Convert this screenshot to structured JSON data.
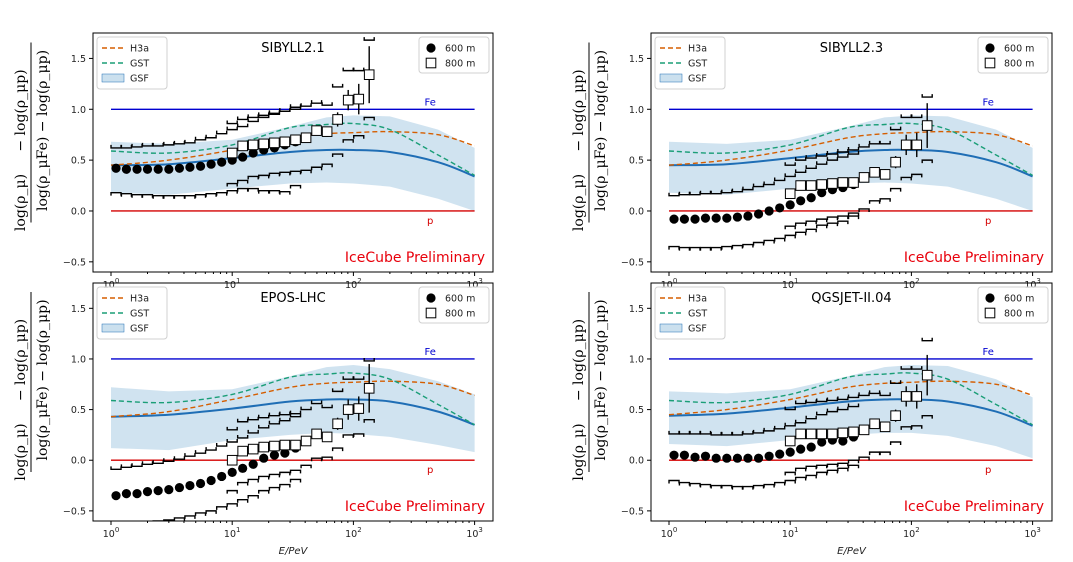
{
  "figure": {
    "xlabel": "E/PeV",
    "xtick_labels": [
      "10^0",
      "10^1",
      "10^2",
      "10^3"
    ],
    "ytick_labels": [
      "−0.5",
      "0.0",
      "0.5",
      "1.0",
      "1.5"
    ],
    "ylabel_numerator_left": "log(ρ_μ)",
    "ylabel_numerator_right": "− log(ρ_μp)",
    "ylabel_denominator": "log(ρ_μFe) − log(ρ_μp)"
  },
  "colors": {
    "h3a": "#d55e00",
    "gst": "#1a9e77",
    "gsf_line": "#1f6eb5",
    "gsf_band": "#a9cce3",
    "fe": "#0000d0",
    "p": "#d40000",
    "prelim": "#e8000b"
  },
  "chart_data": [
    {
      "type": "scatter",
      "title": "SIBYLL2.1",
      "annotation": "IceCube Preliminary",
      "xscale": "log",
      "xlabel": "E/PeV",
      "xlim": [
        0.8,
        1200
      ],
      "ylim": [
        -0.6,
        1.75
      ],
      "grid": false,
      "legend": {
        "models": [
          "H3a",
          "GST",
          "GSF"
        ],
        "markers": [
          "600 m",
          "800 m"
        ],
        "placement": "top-left and top-right"
      },
      "reference_lines": [
        {
          "name": "Fe",
          "y": 1.0
        },
        {
          "name": "p",
          "y": 0.0
        }
      ],
      "curves": {
        "x": [
          1.0,
          3.0,
          10.0,
          30.0,
          60.0,
          100.0,
          200.0,
          500.0,
          1000.0
        ],
        "H3a": [
          0.45,
          0.5,
          0.6,
          0.72,
          0.76,
          0.77,
          0.78,
          0.75,
          0.64
        ],
        "GST": [
          0.59,
          0.57,
          0.65,
          0.82,
          0.85,
          0.86,
          0.8,
          0.55,
          0.35
        ],
        "GSF": [
          0.45,
          0.46,
          0.52,
          0.58,
          0.6,
          0.6,
          0.58,
          0.48,
          0.34
        ],
        "GSF_low": [
          0.18,
          0.16,
          0.22,
          0.27,
          0.28,
          0.27,
          0.24,
          0.12,
          0.0
        ],
        "GSF_high": [
          0.68,
          0.66,
          0.7,
          0.83,
          0.92,
          0.94,
          0.93,
          0.8,
          0.62
        ]
      },
      "series": [
        {
          "name": "600 m",
          "marker": "filled-circle",
          "x": [
            1.1,
            1.34,
            1.64,
            2.0,
            2.45,
            3.0,
            3.67,
            4.48,
            5.48,
            6.7,
            8.19,
            10.0,
            12.2,
            14.9,
            18.2,
            22.3,
            27.2,
            33.3
          ],
          "y": [
            0.42,
            0.41,
            0.41,
            0.41,
            0.41,
            0.41,
            0.42,
            0.43,
            0.44,
            0.46,
            0.48,
            0.5,
            0.53,
            0.57,
            0.6,
            0.62,
            0.65,
            0.68
          ],
          "sys_low": [
            0.18,
            0.17,
            0.16,
            0.16,
            0.15,
            0.15,
            0.15,
            0.15,
            0.16,
            0.17,
            0.18,
            0.2,
            0.22,
            0.22,
            0.2,
            0.2,
            0.19,
            0.25
          ],
          "sys_high": [
            0.62,
            0.62,
            0.63,
            0.64,
            0.64,
            0.65,
            0.66,
            0.67,
            0.7,
            0.72,
            0.76,
            0.8,
            0.83,
            0.88,
            0.92,
            0.95,
            0.98,
            1.02
          ]
        },
        {
          "name": "800 m",
          "marker": "open-square",
          "x": [
            10.0,
            12.2,
            14.9,
            18.2,
            22.3,
            27.2,
            33.3,
            40.7,
            49.7,
            60.7,
            74.1,
            90.6,
            110.7,
            135.0
          ],
          "y": [
            0.57,
            0.64,
            0.65,
            0.66,
            0.67,
            0.68,
            0.7,
            0.72,
            0.79,
            0.78,
            0.9,
            1.09,
            1.1,
            1.34
          ],
          "err": [
            0.0,
            0.0,
            0.0,
            0.0,
            0.0,
            0.0,
            0.0,
            0.03,
            0.04,
            0.05,
            0.07,
            0.1,
            0.15,
            0.28
          ],
          "sys_low": [
            0.27,
            0.3,
            0.34,
            0.35,
            0.37,
            0.38,
            0.39,
            0.4,
            0.43,
            0.46,
            0.56,
            0.7,
            0.74,
            0.92
          ],
          "sys_high": [
            0.86,
            0.9,
            0.92,
            0.94,
            0.96,
            0.98,
            1.0,
            1.03,
            1.06,
            1.04,
            1.22,
            1.38,
            1.38,
            1.68
          ]
        }
      ]
    },
    {
      "type": "scatter",
      "title": "SIBYLL2.3",
      "annotation": "IceCube Preliminary",
      "xscale": "log",
      "xlabel": "E/PeV",
      "xlim": [
        0.8,
        1200
      ],
      "ylim": [
        -0.6,
        1.75
      ],
      "grid": false,
      "legend": {
        "models": [
          "H3a",
          "GST",
          "GSF"
        ],
        "markers": [
          "600 m",
          "800 m"
        ],
        "placement": "top-left and top-right"
      },
      "reference_lines": [
        {
          "name": "Fe",
          "y": 1.0
        },
        {
          "name": "p",
          "y": 0.0
        }
      ],
      "curves": {
        "x": [
          1.0,
          3.0,
          10.0,
          30.0,
          60.0,
          100.0,
          200.0,
          500.0,
          1000.0
        ],
        "H3a": [
          0.45,
          0.5,
          0.6,
          0.72,
          0.76,
          0.77,
          0.78,
          0.75,
          0.64
        ],
        "GST": [
          0.59,
          0.57,
          0.65,
          0.82,
          0.85,
          0.86,
          0.8,
          0.55,
          0.35
        ],
        "GSF": [
          0.45,
          0.46,
          0.52,
          0.58,
          0.6,
          0.6,
          0.58,
          0.48,
          0.34
        ],
        "GSF_low": [
          0.18,
          0.16,
          0.22,
          0.27,
          0.28,
          0.27,
          0.24,
          0.12,
          0.0
        ],
        "GSF_high": [
          0.68,
          0.66,
          0.7,
          0.83,
          0.92,
          0.94,
          0.93,
          0.8,
          0.62
        ]
      },
      "series": [
        {
          "name": "600 m",
          "marker": "filled-circle",
          "x": [
            1.1,
            1.34,
            1.64,
            2.0,
            2.45,
            3.0,
            3.67,
            4.48,
            5.48,
            6.7,
            8.19,
            10.0,
            12.2,
            14.9,
            18.2,
            22.3,
            27.2,
            33.3
          ],
          "y": [
            -0.08,
            -0.08,
            -0.08,
            -0.07,
            -0.07,
            -0.07,
            -0.06,
            -0.05,
            -0.03,
            0.0,
            0.03,
            0.06,
            0.1,
            0.13,
            0.18,
            0.21,
            0.23,
            0.26
          ],
          "sys_low": [
            -0.35,
            -0.36,
            -0.36,
            -0.36,
            -0.36,
            -0.35,
            -0.34,
            -0.33,
            -0.31,
            -0.29,
            -0.27,
            -0.24,
            -0.21,
            -0.18,
            -0.14,
            -0.12,
            -0.1,
            -0.05
          ],
          "sys_high": [
            0.15,
            0.16,
            0.16,
            0.17,
            0.17,
            0.18,
            0.19,
            0.21,
            0.24,
            0.26,
            0.3,
            0.34,
            0.38,
            0.42,
            0.46,
            0.5,
            0.53,
            0.56
          ]
        },
        {
          "name": "800 m",
          "marker": "open-square",
          "x": [
            10.0,
            12.2,
            14.9,
            18.2,
            22.3,
            27.2,
            33.3,
            40.7,
            49.7,
            60.7,
            74.1,
            90.6,
            110.7,
            135.0
          ],
          "y": [
            0.17,
            0.25,
            0.25,
            0.26,
            0.27,
            0.28,
            0.28,
            0.33,
            0.38,
            0.36,
            0.48,
            0.65,
            0.65,
            0.84
          ],
          "err": [
            0.0,
            0.0,
            0.0,
            0.0,
            0.0,
            0.0,
            0.0,
            0.03,
            0.04,
            0.05,
            0.06,
            0.1,
            0.12,
            0.22
          ],
          "sys_low": [
            -0.15,
            -0.12,
            -0.1,
            -0.08,
            -0.06,
            -0.05,
            -0.02,
            0.02,
            0.1,
            0.12,
            0.22,
            0.33,
            0.36,
            0.5
          ],
          "sys_high": [
            0.45,
            0.5,
            0.52,
            0.54,
            0.56,
            0.58,
            0.6,
            0.63,
            0.66,
            0.66,
            0.8,
            0.92,
            0.92,
            1.12
          ]
        }
      ]
    },
    {
      "type": "scatter",
      "title": "EPOS-LHC",
      "annotation": "IceCube Preliminary",
      "xscale": "log",
      "xlabel": "E/PeV",
      "xlim": [
        0.8,
        1200
      ],
      "ylim": [
        -0.6,
        1.75
      ],
      "grid": false,
      "legend": {
        "models": [
          "H3a",
          "GST",
          "GSF"
        ],
        "markers": [
          "600 m",
          "800 m"
        ],
        "placement": "top-left and top-right"
      },
      "reference_lines": [
        {
          "name": "Fe",
          "y": 1.0
        },
        {
          "name": "p",
          "y": 0.0
        }
      ],
      "curves": {
        "x": [
          1.0,
          3.0,
          10.0,
          30.0,
          60.0,
          100.0,
          200.0,
          500.0,
          1000.0
        ],
        "H3a": [
          0.43,
          0.48,
          0.6,
          0.72,
          0.76,
          0.77,
          0.78,
          0.75,
          0.64
        ],
        "GST": [
          0.59,
          0.57,
          0.65,
          0.82,
          0.85,
          0.86,
          0.8,
          0.55,
          0.35
        ],
        "GSF": [
          0.43,
          0.45,
          0.51,
          0.58,
          0.6,
          0.6,
          0.58,
          0.48,
          0.35
        ],
        "GSF_low": [
          0.12,
          0.1,
          0.2,
          0.25,
          0.27,
          0.26,
          0.23,
          0.15,
          0.08
        ],
        "GSF_high": [
          0.72,
          0.68,
          0.7,
          0.83,
          0.92,
          0.94,
          0.9,
          0.78,
          0.65
        ]
      },
      "series": [
        {
          "name": "600 m",
          "marker": "filled-circle",
          "x": [
            1.1,
            1.34,
            1.64,
            2.0,
            2.45,
            3.0,
            3.67,
            4.48,
            5.48,
            6.7,
            8.19,
            10.0,
            12.2,
            14.9,
            18.2,
            22.3,
            27.2,
            33.3
          ],
          "y": [
            -0.35,
            -0.33,
            -0.33,
            -0.31,
            -0.3,
            -0.29,
            -0.27,
            -0.25,
            -0.23,
            -0.2,
            -0.16,
            -0.12,
            -0.08,
            -0.04,
            0.02,
            0.05,
            0.07,
            0.12
          ],
          "sys_low": [
            -0.62,
            -0.62,
            -0.62,
            -0.61,
            -0.6,
            -0.59,
            -0.57,
            -0.55,
            -0.52,
            -0.5,
            -0.46,
            -0.43,
            -0.39,
            -0.35,
            -0.3,
            -0.27,
            -0.24,
            -0.19
          ],
          "sys_high": [
            -0.09,
            -0.07,
            -0.06,
            -0.04,
            -0.03,
            -0.01,
            0.01,
            0.04,
            0.07,
            0.1,
            0.14,
            0.18,
            0.22,
            0.27,
            0.32,
            0.36,
            0.39,
            0.43
          ]
        },
        {
          "name": "800 m",
          "marker": "open-square",
          "x": [
            10.0,
            12.2,
            14.9,
            18.2,
            22.3,
            27.2,
            33.3,
            40.7,
            49.7,
            60.7,
            74.1,
            90.6,
            110.7,
            135.0
          ],
          "y": [
            0.0,
            0.09,
            0.11,
            0.13,
            0.14,
            0.15,
            0.15,
            0.19,
            0.26,
            0.23,
            0.36,
            0.5,
            0.51,
            0.71
          ],
          "err": [
            0.0,
            0.0,
            0.0,
            0.0,
            0.0,
            0.0,
            0.0,
            0.03,
            0.04,
            0.05,
            0.06,
            0.1,
            0.12,
            0.24
          ],
          "sys_low": [
            -0.3,
            -0.22,
            -0.19,
            -0.16,
            -0.14,
            -0.12,
            -0.1,
            -0.05,
            0.02,
            0.03,
            0.12,
            0.25,
            0.26,
            0.4
          ],
          "sys_high": [
            0.3,
            0.38,
            0.4,
            0.42,
            0.44,
            0.45,
            0.46,
            0.5,
            0.56,
            0.52,
            0.68,
            0.8,
            0.8,
            0.98
          ]
        }
      ]
    },
    {
      "type": "scatter",
      "title": "QGSJET-II.04",
      "annotation": "IceCube Preliminary",
      "xscale": "log",
      "xlabel": "E/PeV",
      "xlim": [
        0.8,
        1200
      ],
      "ylim": [
        -0.6,
        1.75
      ],
      "grid": false,
      "legend": {
        "models": [
          "H3a",
          "GST",
          "GSF"
        ],
        "markers": [
          "600 m",
          "800 m"
        ],
        "placement": "top-left and top-right"
      },
      "reference_lines": [
        {
          "name": "Fe",
          "y": 1.0
        },
        {
          "name": "p",
          "y": 0.0
        }
      ],
      "curves": {
        "x": [
          1.0,
          3.0,
          10.0,
          30.0,
          60.0,
          100.0,
          200.0,
          500.0,
          1000.0
        ],
        "H3a": [
          0.45,
          0.5,
          0.6,
          0.72,
          0.76,
          0.77,
          0.78,
          0.75,
          0.64
        ],
        "GST": [
          0.59,
          0.57,
          0.65,
          0.82,
          0.85,
          0.86,
          0.8,
          0.55,
          0.35
        ],
        "GSF": [
          0.44,
          0.46,
          0.52,
          0.58,
          0.6,
          0.6,
          0.58,
          0.48,
          0.34
        ],
        "GSF_low": [
          0.16,
          0.14,
          0.2,
          0.25,
          0.27,
          0.27,
          0.24,
          0.14,
          0.02
        ],
        "GSF_high": [
          0.68,
          0.66,
          0.7,
          0.83,
          0.92,
          0.94,
          0.93,
          0.8,
          0.62
        ]
      },
      "series": [
        {
          "name": "600 m",
          "marker": "filled-circle",
          "x": [
            1.1,
            1.34,
            1.64,
            2.0,
            2.45,
            3.0,
            3.67,
            4.48,
            5.48,
            6.7,
            8.19,
            10.0,
            12.2,
            14.9,
            18.2,
            22.3,
            27.2,
            33.3
          ],
          "y": [
            0.05,
            0.05,
            0.03,
            0.04,
            0.02,
            0.02,
            0.02,
            0.02,
            0.02,
            0.04,
            0.06,
            0.08,
            0.11,
            0.13,
            0.18,
            0.2,
            0.19,
            0.23
          ],
          "sys_low": [
            -0.2,
            -0.22,
            -0.23,
            -0.24,
            -0.25,
            -0.25,
            -0.26,
            -0.26,
            -0.25,
            -0.24,
            -0.22,
            -0.2,
            -0.17,
            -0.15,
            -0.12,
            -0.1,
            -0.08,
            -0.05
          ],
          "sys_high": [
            0.26,
            0.26,
            0.26,
            0.26,
            0.25,
            0.25,
            0.25,
            0.26,
            0.27,
            0.29,
            0.31,
            0.34,
            0.37,
            0.41,
            0.45,
            0.48,
            0.5,
            0.53
          ]
        },
        {
          "name": "800 m",
          "marker": "open-square",
          "x": [
            10.0,
            12.2,
            14.9,
            18.2,
            22.3,
            27.2,
            33.3,
            40.7,
            49.7,
            60.7,
            74.1,
            90.6,
            110.7,
            135.0
          ],
          "y": [
            0.19,
            0.26,
            0.26,
            0.26,
            0.26,
            0.27,
            0.28,
            0.3,
            0.36,
            0.33,
            0.44,
            0.63,
            0.63,
            0.84
          ],
          "err": [
            0.0,
            0.0,
            0.0,
            0.0,
            0.0,
            0.0,
            0.0,
            0.03,
            0.04,
            0.05,
            0.06,
            0.1,
            0.12,
            0.2
          ],
          "sys_low": [
            -0.12,
            -0.08,
            -0.06,
            -0.05,
            -0.04,
            -0.03,
            0.0,
            0.03,
            0.08,
            0.08,
            0.18,
            0.33,
            0.34,
            0.44
          ],
          "sys_high": [
            0.5,
            0.56,
            0.57,
            0.58,
            0.59,
            0.6,
            0.62,
            0.64,
            0.66,
            0.64,
            0.76,
            0.9,
            0.9,
            1.18
          ]
        }
      ]
    }
  ]
}
